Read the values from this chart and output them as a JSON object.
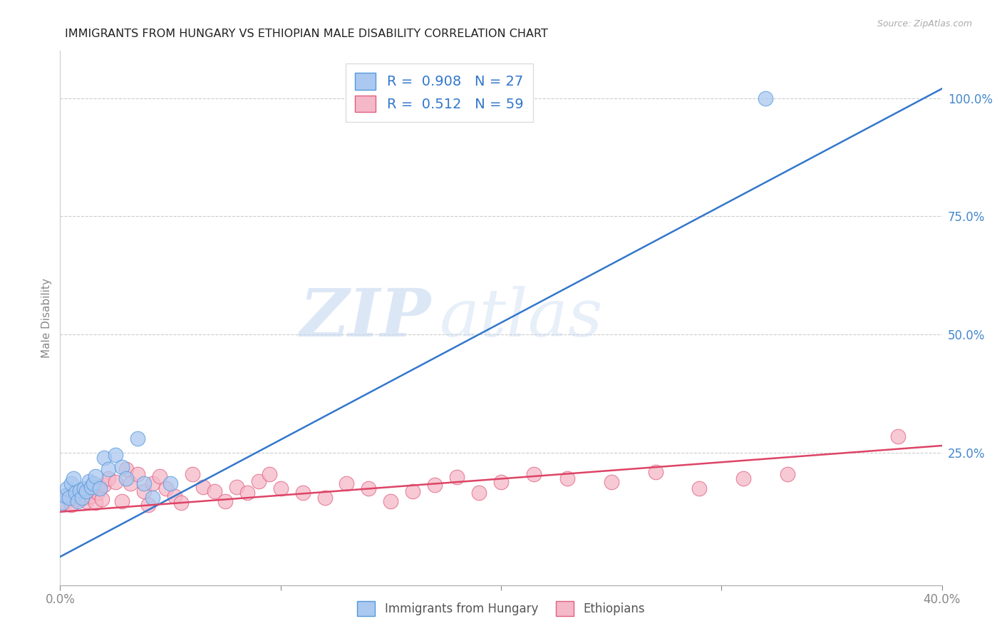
{
  "title": "IMMIGRANTS FROM HUNGARY VS ETHIOPIAN MALE DISABILITY CORRELATION CHART",
  "source": "Source: ZipAtlas.com",
  "ylabel": "Male Disability",
  "right_yticks": [
    "100.0%",
    "75.0%",
    "50.0%",
    "25.0%"
  ],
  "right_ytick_vals": [
    1.0,
    0.75,
    0.5,
    0.25
  ],
  "legend_r1": "0.908",
  "legend_n1": "27",
  "legend_r2": "0.512",
  "legend_n2": "59",
  "hungary_color": "#aac8f0",
  "ethiopia_color": "#f5b8c8",
  "hungary_edge_color": "#5599dd",
  "ethiopia_edge_color": "#e06080",
  "hungary_line_color": "#3377cc",
  "ethiopia_line_color": "#dd4466",
  "watermark_zip": "ZIP",
  "watermark_atlas": "atlas",
  "hungary_points_x": [
    0.001,
    0.002,
    0.003,
    0.004,
    0.005,
    0.006,
    0.007,
    0.008,
    0.009,
    0.01,
    0.011,
    0.012,
    0.013,
    0.014,
    0.015,
    0.016,
    0.018,
    0.02,
    0.022,
    0.025,
    0.028,
    0.03,
    0.035,
    0.038,
    0.042,
    0.05,
    0.32
  ],
  "hungary_points_y": [
    0.145,
    0.16,
    0.175,
    0.155,
    0.185,
    0.195,
    0.165,
    0.148,
    0.17,
    0.155,
    0.175,
    0.168,
    0.19,
    0.178,
    0.185,
    0.2,
    0.175,
    0.24,
    0.215,
    0.245,
    0.22,
    0.195,
    0.28,
    0.185,
    0.155,
    0.185,
    1.0
  ],
  "ethiopia_points_x": [
    0.002,
    0.003,
    0.004,
    0.005,
    0.006,
    0.007,
    0.008,
    0.009,
    0.01,
    0.011,
    0.012,
    0.013,
    0.014,
    0.015,
    0.016,
    0.017,
    0.018,
    0.019,
    0.02,
    0.022,
    0.025,
    0.028,
    0.03,
    0.032,
    0.035,
    0.038,
    0.04,
    0.042,
    0.045,
    0.048,
    0.052,
    0.055,
    0.06,
    0.065,
    0.07,
    0.075,
    0.08,
    0.085,
    0.09,
    0.095,
    0.1,
    0.11,
    0.12,
    0.13,
    0.14,
    0.15,
    0.16,
    0.17,
    0.18,
    0.19,
    0.2,
    0.215,
    0.23,
    0.25,
    0.27,
    0.29,
    0.31,
    0.33,
    0.38
  ],
  "ethiopia_points_y": [
    0.145,
    0.16,
    0.155,
    0.14,
    0.165,
    0.158,
    0.152,
    0.17,
    0.162,
    0.155,
    0.148,
    0.168,
    0.158,
    0.175,
    0.145,
    0.165,
    0.178,
    0.152,
    0.182,
    0.195,
    0.188,
    0.148,
    0.215,
    0.185,
    0.205,
    0.168,
    0.14,
    0.185,
    0.2,
    0.175,
    0.158,
    0.145,
    0.205,
    0.178,
    0.168,
    0.148,
    0.178,
    0.165,
    0.19,
    0.205,
    0.175,
    0.165,
    0.155,
    0.185,
    0.175,
    0.148,
    0.168,
    0.182,
    0.198,
    0.165,
    0.188,
    0.205,
    0.195,
    0.188,
    0.21,
    0.175,
    0.195,
    0.205,
    0.285
  ],
  "hungary_line_x0": 0.0,
  "hungary_line_y0": 0.03,
  "hungary_line_x1": 0.4,
  "hungary_line_y1": 1.02,
  "ethiopia_line_x0": 0.0,
  "ethiopia_line_y0": 0.125,
  "ethiopia_line_x1": 0.4,
  "ethiopia_line_y1": 0.265,
  "xlim": [
    0.0,
    0.4
  ],
  "ylim": [
    -0.03,
    1.1
  ],
  "xtick_positions": [
    0.0,
    0.1,
    0.2,
    0.3,
    0.4
  ]
}
